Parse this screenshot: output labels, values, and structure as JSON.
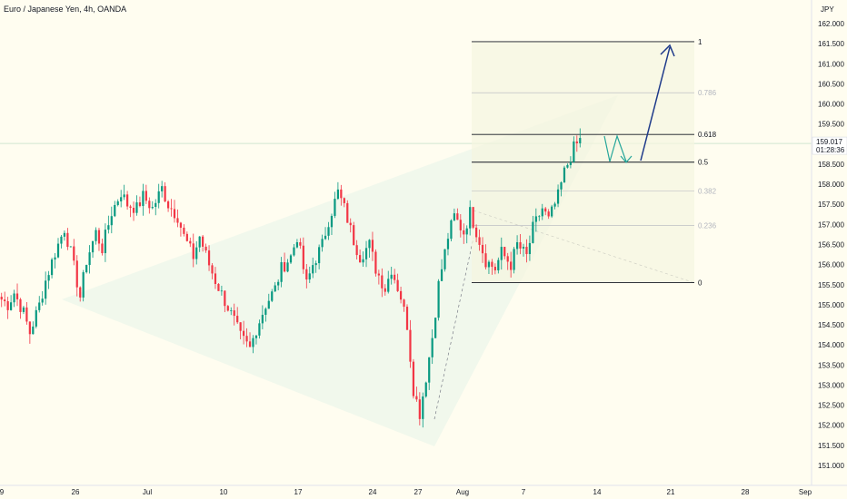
{
  "chart_data": {
    "type": "candlestick",
    "title": "Euro / Japanese Yen, 4h, OANDA",
    "currency": "JPY",
    "y_axis": {
      "min": 150.7,
      "max": 162.3,
      "ticks": [
        "151.000",
        "151.500",
        "152.000",
        "152.500",
        "153.000",
        "153.500",
        "154.000",
        "154.500",
        "155.000",
        "155.500",
        "156.000",
        "156.500",
        "157.000",
        "157.500",
        "158.000",
        "158.500",
        "159.000",
        "159.500",
        "160.000",
        "160.500",
        "161.000",
        "161.500",
        "162.000"
      ]
    },
    "x_axis": {
      "labels": [
        "9",
        "26",
        "Jul",
        "10",
        "17",
        "24",
        "27",
        "Aug",
        "7",
        "14",
        "21",
        "28",
        "Sep"
      ]
    },
    "current_price": {
      "price": "159.017",
      "countdown": "01:28:36",
      "value": 159.017
    },
    "fib_levels": [
      {
        "label": "1",
        "value": 161.55
      },
      {
        "label": "0.786",
        "value": 160.28
      },
      {
        "label": "0.618",
        "value": 159.24
      },
      {
        "label": "0.5",
        "value": 158.55
      },
      {
        "label": "0.382",
        "value": 157.83
      },
      {
        "label": "0.236",
        "value": 156.97
      },
      {
        "label": "0",
        "value": 155.55
      }
    ],
    "price_path": [
      [
        155.2,
        0
      ],
      [
        155.0,
        3
      ],
      [
        155.3,
        2
      ],
      [
        154.8,
        3
      ],
      [
        154.3,
        2
      ],
      [
        155.0,
        3
      ],
      [
        155.6,
        2
      ],
      [
        156.3,
        3
      ],
      [
        156.9,
        3
      ],
      [
        156.3,
        2
      ],
      [
        155.2,
        3
      ],
      [
        156.1,
        2
      ],
      [
        156.8,
        3
      ],
      [
        156.4,
        2
      ],
      [
        157.3,
        3
      ],
      [
        157.8,
        3
      ],
      [
        157.5,
        2
      ],
      [
        157.4,
        3
      ],
      [
        157.7,
        2
      ],
      [
        157.4,
        3
      ],
      [
        157.9,
        3
      ],
      [
        157.5,
        2
      ],
      [
        157.2,
        3
      ],
      [
        156.7,
        2
      ],
      [
        156.2,
        3
      ],
      [
        156.7,
        2
      ],
      [
        156.0,
        3
      ],
      [
        155.6,
        2
      ],
      [
        155.1,
        3
      ],
      [
        154.6,
        3
      ],
      [
        154.2,
        2
      ],
      [
        153.9,
        3
      ],
      [
        154.4,
        2
      ],
      [
        155.0,
        3
      ],
      [
        155.4,
        3
      ],
      [
        155.9,
        2
      ],
      [
        156.2,
        3
      ],
      [
        156.7,
        2
      ],
      [
        155.5,
        3
      ],
      [
        156.0,
        2
      ],
      [
        156.5,
        3
      ],
      [
        157.1,
        2
      ],
      [
        157.8,
        3
      ],
      [
        157.4,
        2
      ],
      [
        156.6,
        3
      ],
      [
        156.2,
        2
      ],
      [
        156.5,
        3
      ],
      [
        155.9,
        2
      ],
      [
        155.4,
        3
      ],
      [
        155.9,
        2
      ],
      [
        155.2,
        3
      ],
      [
        154.5,
        2
      ],
      [
        152.9,
        2
      ],
      [
        152.3,
        2
      ],
      [
        153.2,
        2
      ],
      [
        154.2,
        2
      ],
      [
        155.5,
        2
      ],
      [
        156.7,
        3
      ],
      [
        157.2,
        2
      ],
      [
        156.8,
        3
      ],
      [
        157.3,
        2
      ],
      [
        156.6,
        3
      ],
      [
        156.1,
        2
      ],
      [
        155.9,
        3
      ],
      [
        156.3,
        2
      ],
      [
        156.0,
        3
      ],
      [
        156.5,
        2
      ],
      [
        156.2,
        3
      ],
      [
        156.9,
        2
      ],
      [
        157.4,
        3
      ],
      [
        157.1,
        2
      ],
      [
        157.7,
        3
      ],
      [
        158.3,
        2
      ],
      [
        158.9,
        3
      ],
      [
        159.1,
        2
      ]
    ],
    "grid": false,
    "legend": "none"
  },
  "annotations": {
    "fib_right_label_color": "#131722",
    "fib_faded_label_color": "#b2b5be"
  },
  "colors": {
    "up": "#089981",
    "down": "#f23645",
    "fib_line": "#131722",
    "fib_faded": "#b2b5be",
    "arrow_blue": "#1e3a8a",
    "arrow_green": "#26a69a",
    "triangle_fill": "#e8f5e9",
    "crosshair": "#d1e7d1"
  }
}
